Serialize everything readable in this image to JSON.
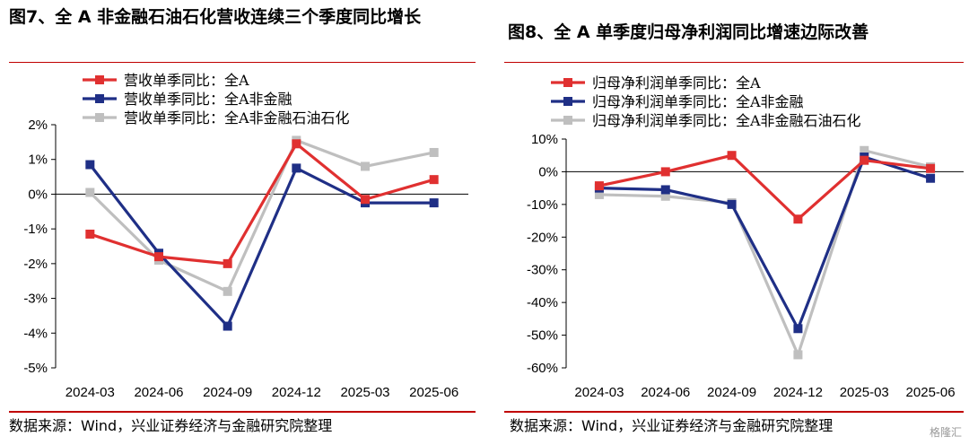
{
  "charts": [
    {
      "title": "图7、全 A 非金融石油石化营收连续三个季度同比增长",
      "source": "数据来源：Wind，兴业证券经济与金融研究院整理"
    },
    {
      "title": "图8、全 A 单季度归母净利润同比增速边际改善",
      "source": "数据来源：Wind，兴业证券经济与金融研究院整理"
    }
  ],
  "watermark": "格隆汇",
  "chart_data": [
    {
      "type": "line",
      "title": "图7、全 A 非金融石油石化营收连续三个季度同比增长",
      "categories": [
        "2024-03",
        "2024-06",
        "2024-09",
        "2024-12",
        "2025-03",
        "2025-06"
      ],
      "ylim": [
        -5,
        2
      ],
      "yticks": [
        2,
        1,
        0,
        -1,
        -2,
        -3,
        -4,
        -5
      ],
      "ytick_labels": [
        "2%",
        "1%",
        "0%",
        "-1%",
        "-2%",
        "-3%",
        "-4%",
        "-5%"
      ],
      "legend_position": "top-left",
      "grid": false,
      "series": [
        {
          "name": "营收单季同比：全A",
          "color": "#e03030",
          "values": [
            -1.15,
            -1.8,
            -2.0,
            1.45,
            -0.15,
            0.42
          ]
        },
        {
          "name": "营收单季同比：全A非金融",
          "color": "#1f2f86",
          "values": [
            0.85,
            -1.7,
            -3.8,
            0.75,
            -0.25,
            -0.25
          ]
        },
        {
          "name": "营收单季同比：全A非金融石油石化",
          "color": "#bfbfbf",
          "values": [
            0.05,
            -1.9,
            -2.8,
            1.55,
            0.8,
            1.2
          ]
        }
      ]
    },
    {
      "type": "line",
      "title": "图8、全 A 单季度归母净利润同比增速边际改善",
      "categories": [
        "2024-03",
        "2024-06",
        "2024-09",
        "2024-12",
        "2025-03",
        "2025-06"
      ],
      "ylim": [
        -60,
        10
      ],
      "yticks": [
        10,
        0,
        -10,
        -20,
        -30,
        -40,
        -50,
        -60
      ],
      "ytick_labels": [
        "10%",
        "0%",
        "-10%",
        "-20%",
        "-30%",
        "-40%",
        "-50%",
        "-60%"
      ],
      "legend_position": "top-left",
      "grid": false,
      "series": [
        {
          "name": "归母净利润单季同比：全A",
          "color": "#e03030",
          "values": [
            -4.3,
            0,
            5.0,
            -14.5,
            3.5,
            1.0
          ]
        },
        {
          "name": "归母净利润单季同比：全A非金融",
          "color": "#1f2f86",
          "values": [
            -5.0,
            -5.5,
            -10.0,
            -48.0,
            4.5,
            -2.0
          ]
        },
        {
          "name": "归母净利润单季同比：全A非金融石油石化",
          "color": "#bfbfbf",
          "values": [
            -7.0,
            -7.5,
            -9.5,
            -56.0,
            6.5,
            1.5
          ]
        }
      ]
    }
  ]
}
